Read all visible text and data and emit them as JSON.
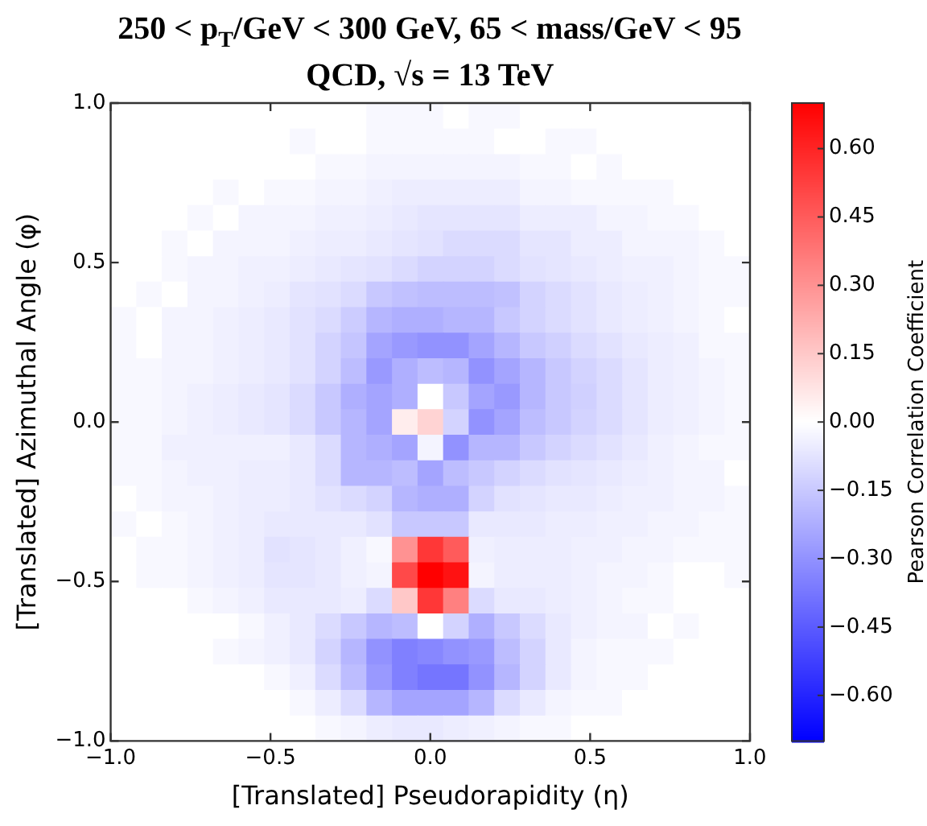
{
  "chart_data": {
    "type": "heatmap",
    "title": "250 < p$_{T}$/GeV < 300 GeV, 65 < mass/GeV < 95",
    "subtitle": "QCD, √s = 13 TeV",
    "xlabel": "[Translated] Pseudorapidity (η)",
    "ylabel": "[Translated] Azimuthal Angle (φ)",
    "clabel": "Pearson Correlation Coefficient",
    "x": [
      -0.96,
      -0.88,
      -0.8,
      -0.72,
      -0.64,
      -0.56,
      -0.48,
      -0.4,
      -0.32,
      -0.24,
      -0.16,
      -0.08,
      0,
      0.08,
      0.16,
      0.24,
      0.32,
      0.4,
      0.48,
      0.56,
      0.64,
      0.72,
      0.8,
      0.88,
      0.96
    ],
    "y": [
      0.96,
      0.88,
      0.8,
      0.72,
      0.64,
      0.56,
      0.48,
      0.4,
      0.32,
      0.24,
      0.16,
      0.08,
      0,
      -0.08,
      -0.16,
      -0.24,
      -0.32,
      -0.4,
      -0.48,
      -0.56,
      -0.64,
      -0.72,
      -0.8,
      -0.88,
      -0.96
    ],
    "xlim": [
      -1,
      1
    ],
    "ylim": [
      -1,
      1
    ],
    "xticks": [
      {
        "value": -1,
        "label": "−1.0"
      },
      {
        "value": -0.5,
        "label": "−0.5"
      },
      {
        "value": 0,
        "label": "0.0"
      },
      {
        "value": 0.5,
        "label": "0.5"
      },
      {
        "value": 1,
        "label": "1.0"
      }
    ],
    "yticks": [
      {
        "value": -1,
        "label": "−1.0"
      },
      {
        "value": -0.5,
        "label": "−0.5"
      },
      {
        "value": 0,
        "label": "0.0"
      },
      {
        "value": 0.5,
        "label": "0.5"
      },
      {
        "value": 1,
        "label": "1.0"
      }
    ],
    "clim": [
      -0.7,
      0.7
    ],
    "cticks": [
      {
        "value": -0.6,
        "label": "−0.60"
      },
      {
        "value": -0.45,
        "label": "−0.45"
      },
      {
        "value": -0.3,
        "label": "−0.30"
      },
      {
        "value": -0.15,
        "label": "−0.15"
      },
      {
        "value": 0,
        "label": "0.00"
      },
      {
        "value": 0.15,
        "label": "0.15"
      },
      {
        "value": 0.3,
        "label": "0.30"
      },
      {
        "value": 0.45,
        "label": "0.45"
      },
      {
        "value": 0.6,
        "label": "0.60"
      }
    ],
    "legend": false,
    "cells": [
      [
        0,
        0,
        0,
        0,
        0,
        0,
        0,
        0,
        0,
        0,
        -0.02,
        -0.02,
        -0.02,
        0,
        -0.02,
        -0.02,
        0,
        0,
        0,
        0,
        0,
        0,
        0,
        0,
        0
      ],
      [
        0,
        0,
        0,
        0,
        0,
        0,
        0,
        -0.02,
        0,
        0,
        -0.02,
        -0.02,
        -0.02,
        -0.02,
        -0.02,
        0,
        0,
        -0.02,
        -0.02,
        0,
        0,
        0,
        0,
        0,
        0
      ],
      [
        0,
        0,
        0,
        0,
        0,
        0,
        0,
        0,
        -0.02,
        -0.02,
        -0.03,
        -0.03,
        -0.03,
        -0.03,
        -0.03,
        -0.03,
        -0.02,
        -0.02,
        0,
        -0.02,
        0,
        0,
        0,
        0,
        0
      ],
      [
        0,
        0,
        0,
        0,
        -0.02,
        0,
        -0.02,
        -0.02,
        -0.03,
        -0.03,
        -0.04,
        -0.05,
        -0.05,
        -0.05,
        -0.05,
        -0.05,
        -0.03,
        -0.03,
        -0.02,
        -0.02,
        -0.02,
        -0.02,
        0,
        0,
        0
      ],
      [
        0,
        0,
        0,
        -0.02,
        0,
        -0.03,
        -0.03,
        -0.03,
        -0.04,
        -0.04,
        -0.05,
        -0.06,
        -0.07,
        -0.07,
        -0.07,
        -0.07,
        -0.05,
        -0.05,
        -0.05,
        -0.03,
        -0.03,
        -0.02,
        -0.02,
        0,
        0
      ],
      [
        0,
        0,
        -0.02,
        0,
        -0.03,
        -0.03,
        -0.03,
        -0.04,
        -0.05,
        -0.05,
        -0.06,
        -0.07,
        -0.08,
        -0.1,
        -0.1,
        -0.1,
        -0.07,
        -0.07,
        -0.05,
        -0.05,
        -0.03,
        -0.03,
        -0.03,
        -0.02,
        0
      ],
      [
        0,
        0,
        -0.02,
        -0.03,
        -0.03,
        -0.04,
        -0.04,
        -0.05,
        -0.06,
        -0.07,
        -0.08,
        -0.1,
        -0.12,
        -0.12,
        -0.12,
        -0.1,
        -0.08,
        -0.07,
        -0.06,
        -0.05,
        -0.04,
        -0.04,
        -0.03,
        -0.02,
        -0.02
      ],
      [
        0,
        -0.02,
        0,
        -0.03,
        -0.03,
        -0.04,
        -0.05,
        -0.07,
        -0.08,
        -0.1,
        -0.15,
        -0.17,
        -0.18,
        -0.18,
        -0.18,
        -0.17,
        -0.12,
        -0.1,
        -0.08,
        -0.06,
        -0.05,
        -0.04,
        -0.03,
        -0.02,
        -0.02
      ],
      [
        -0.02,
        0,
        -0.03,
        -0.03,
        -0.04,
        -0.05,
        -0.06,
        -0.08,
        -0.1,
        -0.14,
        -0.2,
        -0.22,
        -0.22,
        -0.2,
        -0.2,
        -0.15,
        -0.12,
        -0.1,
        -0.08,
        -0.06,
        -0.05,
        -0.04,
        -0.03,
        -0.02,
        0
      ],
      [
        -0.02,
        0,
        -0.03,
        -0.03,
        -0.04,
        -0.05,
        -0.06,
        -0.08,
        -0.12,
        -0.16,
        -0.25,
        -0.28,
        -0.3,
        -0.3,
        -0.25,
        -0.2,
        -0.15,
        -0.13,
        -0.1,
        -0.08,
        -0.06,
        -0.05,
        -0.04,
        -0.02,
        -0.02
      ],
      [
        -0.02,
        -0.02,
        -0.03,
        -0.03,
        -0.04,
        -0.05,
        -0.06,
        -0.08,
        -0.12,
        -0.18,
        -0.28,
        -0.22,
        -0.18,
        -0.2,
        -0.3,
        -0.25,
        -0.2,
        -0.15,
        -0.12,
        -0.1,
        -0.07,
        -0.05,
        -0.04,
        -0.03,
        -0.02
      ],
      [
        -0.02,
        -0.02,
        -0.03,
        -0.04,
        -0.05,
        -0.06,
        -0.07,
        -0.1,
        -0.15,
        -0.22,
        -0.25,
        -0.22,
        0,
        -0.15,
        -0.25,
        -0.28,
        -0.2,
        -0.15,
        -0.13,
        -0.1,
        -0.07,
        -0.05,
        -0.04,
        -0.03,
        -0.02
      ],
      [
        -0.02,
        -0.02,
        -0.03,
        -0.04,
        -0.05,
        -0.06,
        -0.07,
        -0.1,
        -0.15,
        -0.2,
        -0.25,
        0.05,
        0.12,
        -0.12,
        -0.3,
        -0.25,
        -0.18,
        -0.15,
        -0.12,
        -0.1,
        -0.07,
        -0.05,
        -0.04,
        -0.03,
        -0.02
      ],
      [
        -0.02,
        -0.02,
        -0.04,
        -0.04,
        -0.04,
        -0.04,
        -0.04,
        -0.06,
        -0.1,
        -0.2,
        -0.22,
        -0.25,
        -0.03,
        -0.3,
        -0.2,
        -0.2,
        -0.15,
        -0.12,
        -0.1,
        -0.08,
        -0.06,
        -0.04,
        -0.03,
        -0.02,
        -0.02
      ],
      [
        -0.02,
        -0.02,
        -0.03,
        -0.04,
        -0.04,
        -0.05,
        -0.05,
        -0.06,
        -0.1,
        -0.2,
        -0.2,
        -0.18,
        -0.25,
        -0.18,
        -0.15,
        -0.12,
        -0.1,
        -0.08,
        -0.07,
        -0.06,
        -0.05,
        -0.04,
        -0.03,
        -0.03,
        0
      ],
      [
        0,
        -0.02,
        -0.03,
        -0.03,
        -0.04,
        -0.05,
        -0.05,
        -0.06,
        -0.08,
        -0.1,
        -0.12,
        -0.2,
        -0.22,
        -0.22,
        -0.12,
        -0.08,
        -0.07,
        -0.06,
        -0.06,
        -0.05,
        -0.04,
        -0.04,
        -0.03,
        -0.03,
        -0.02
      ],
      [
        -0.02,
        0,
        -0.02,
        -0.03,
        -0.04,
        -0.05,
        -0.06,
        -0.06,
        -0.06,
        -0.06,
        -0.08,
        -0.15,
        -0.15,
        -0.15,
        -0.06,
        -0.06,
        -0.06,
        -0.05,
        -0.05,
        -0.04,
        -0.04,
        -0.03,
        -0.03,
        -0.02,
        -0.02
      ],
      [
        0,
        -0.02,
        -0.02,
        -0.03,
        -0.04,
        -0.05,
        -0.08,
        -0.07,
        -0.06,
        -0.04,
        -0.02,
        0.3,
        0.55,
        0.45,
        -0.04,
        -0.05,
        -0.05,
        -0.05,
        -0.04,
        -0.04,
        -0.03,
        -0.03,
        -0.02,
        -0.02,
        -0.02
      ],
      [
        0,
        -0.02,
        -0.02,
        -0.03,
        -0.04,
        -0.05,
        -0.07,
        -0.07,
        -0.06,
        -0.04,
        -0.03,
        0.5,
        0.7,
        0.65,
        -0.03,
        -0.05,
        -0.05,
        -0.05,
        -0.04,
        -0.03,
        -0.03,
        -0.02,
        0,
        0,
        -0.02
      ],
      [
        0,
        0,
        0,
        -0.02,
        -0.03,
        -0.04,
        -0.06,
        -0.06,
        -0.06,
        -0.05,
        -0.1,
        0.15,
        0.55,
        0.35,
        -0.1,
        -0.06,
        -0.06,
        -0.05,
        -0.04,
        -0.03,
        -0.02,
        -0.02,
        0,
        0,
        0
      ],
      [
        0,
        0,
        0,
        0,
        0,
        -0.02,
        -0.04,
        -0.06,
        -0.1,
        -0.15,
        -0.2,
        -0.18,
        0,
        -0.12,
        -0.22,
        -0.15,
        -0.1,
        -0.06,
        -0.04,
        -0.03,
        -0.03,
        0,
        -0.02,
        0,
        0
      ],
      [
        0,
        0,
        0,
        0,
        -0.02,
        -0.03,
        -0.04,
        -0.06,
        -0.12,
        -0.2,
        -0.3,
        -0.35,
        -0.33,
        -0.3,
        -0.28,
        -0.18,
        -0.12,
        -0.06,
        -0.03,
        -0.02,
        -0.02,
        -0.02,
        0,
        0,
        0
      ],
      [
        0,
        0,
        0,
        0,
        0,
        0,
        -0.02,
        -0.04,
        -0.1,
        -0.18,
        -0.28,
        -0.35,
        -0.38,
        -0.38,
        -0.3,
        -0.2,
        -0.12,
        -0.06,
        -0.03,
        -0.02,
        -0.02,
        0,
        0,
        0,
        0
      ],
      [
        0,
        0,
        0,
        0,
        0,
        0,
        0,
        -0.02,
        -0.05,
        -0.1,
        -0.2,
        -0.25,
        -0.25,
        -0.25,
        -0.2,
        -0.1,
        -0.06,
        -0.03,
        -0.02,
        -0.02,
        0,
        0,
        0,
        0,
        0
      ],
      [
        0,
        0,
        0,
        0,
        0,
        0,
        0,
        0,
        -0.02,
        -0.03,
        -0.05,
        -0.06,
        -0.06,
        -0.05,
        -0.04,
        -0.03,
        -0.02,
        -0.02,
        0,
        0,
        0,
        0,
        0,
        0,
        0
      ]
    ]
  }
}
